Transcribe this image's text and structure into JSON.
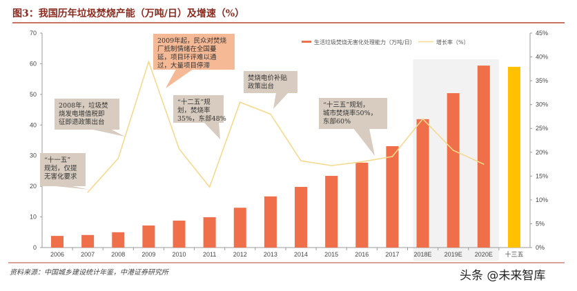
{
  "title": "图3：我国历年垃圾焚烧产能（万吨/日）及增速（%）",
  "source": "资料来源：中国城乡建设统计年鉴，中港证券研究所",
  "watermark": "头条 @未来智库",
  "colors": {
    "bar": "#ef6f4a",
    "bar_highlight": "#ffc000",
    "line": "#f5d98e",
    "forecast_shade": "#f2f2f2",
    "callout": "#d7ccbf",
    "callout_highlight": "#f5b996",
    "rule": "#b5432f"
  },
  "chart_data": {
    "type": "bar+line",
    "categories": [
      "2006",
      "2007",
      "2008",
      "2009",
      "2010",
      "2011",
      "2012",
      "2013",
      "2014",
      "2015",
      "2016",
      "2017",
      "2018E",
      "2019E",
      "2020E",
      "十三五"
    ],
    "series": [
      {
        "name": "生活垃圾焚烧无害化处理能力（万吨/日）",
        "type": "bar",
        "axis": "left",
        "values": [
          3.8,
          4.1,
          5.0,
          7.2,
          8.8,
          9.9,
          13.0,
          16.7,
          19.8,
          23.4,
          27.7,
          33.1,
          41.9,
          50.4,
          59.4,
          59.0
        ]
      },
      {
        "name": "增长率（%）",
        "type": "line",
        "axis": "right",
        "values": [
          null,
          11.6,
          18.7,
          39.0,
          20.7,
          12.7,
          30.5,
          28.0,
          18.2,
          17.2,
          18.0,
          19.1,
          27.0,
          20.4,
          17.5,
          null
        ]
      }
    ],
    "left_axis": {
      "ylim": [
        0,
        70
      ],
      "ticks": [
        "0",
        "10",
        "20",
        "30",
        "40",
        "50",
        "60",
        "70"
      ]
    },
    "right_axis": {
      "ylim": [
        0,
        45
      ],
      "ticks": [
        "0%",
        "5%",
        "10%",
        "15%",
        "20%",
        "25%",
        "30%",
        "35%",
        "40%",
        "45%"
      ]
    },
    "forecast_categories": [
      "2018E",
      "2019E",
      "2020E"
    ],
    "highlight_category": "十三五",
    "legend_placement": "top",
    "grid": false,
    "annotations": [
      {
        "lines": [
          "“十一五”",
          "规划，仅提",
          "无害化要求"
        ],
        "highlight": false
      },
      {
        "lines": [
          "2008年，垃圾焚",
          "烧发电增值税即",
          "征即退政策出台"
        ],
        "highlight": false
      },
      {
        "lines": [
          "2009年起，民众对焚烧",
          "厂抵制情绪在全国蔓",
          "延，项目环评难以通",
          "过，大量项目停滞"
        ],
        "highlight": true
      },
      {
        "lines": [
          "“十二五”规",
          "划，焚烧率",
          "35%，东部48%"
        ],
        "highlight": false
      },
      {
        "lines": [
          "焚烧电价补贴",
          "政策出台"
        ],
        "highlight": false
      },
      {
        "lines": [
          "“十三五”规划，",
          "城市焚烧率50%，",
          "东部60%"
        ],
        "highlight": false
      }
    ]
  }
}
